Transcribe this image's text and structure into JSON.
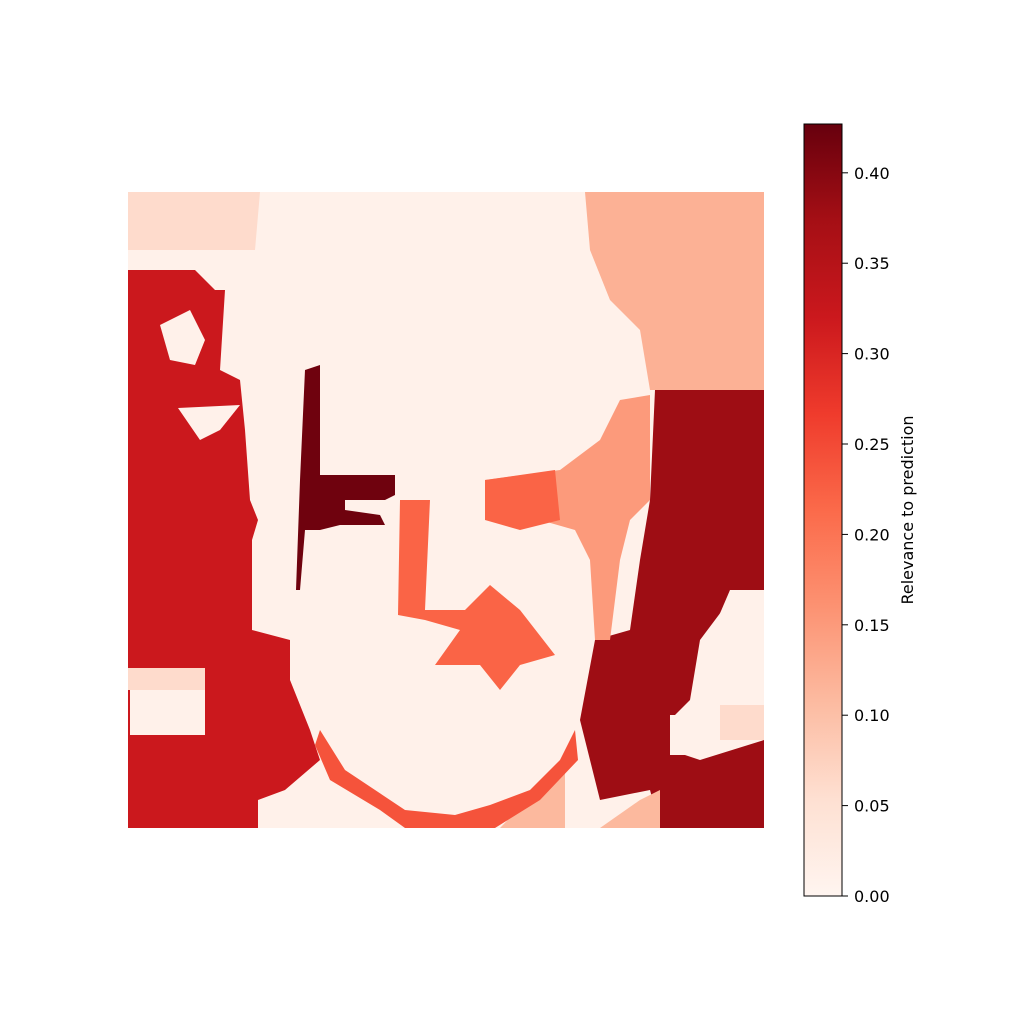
{
  "chart_data": {
    "type": "heatmap",
    "title": "",
    "colormap": "Reds",
    "colormap_stops": [
      "#fff5f0",
      "#fee0d2",
      "#fcbba1",
      "#fc9272",
      "#fb6a4a",
      "#ef3b2c",
      "#cb181d",
      "#a50f15",
      "#67000d"
    ],
    "value_range": [
      0,
      0.427
    ],
    "regions_note": "segmented relevance map over a face image; values per region",
    "region_values": {
      "background_left": 0.32,
      "background_right": 0.38,
      "hair_top_right": 0.12,
      "face_and_hair": 0.01,
      "left_eye_strip": 0.42,
      "nose_cheek": 0.22,
      "right_cheek": 0.15,
      "chin_outline": 0.24,
      "shoulder_right": 0.11,
      "light_patches": 0.06
    },
    "colorbar": {
      "label": "Relevance to prediction",
      "ticks": [
        0.0,
        0.05,
        0.1,
        0.15,
        0.2,
        0.25,
        0.3,
        0.35,
        0.4
      ],
      "tick_labels": [
        "0.00",
        "0.05",
        "0.10",
        "0.15",
        "0.20",
        "0.25",
        "0.30",
        "0.35",
        "0.40"
      ]
    }
  }
}
